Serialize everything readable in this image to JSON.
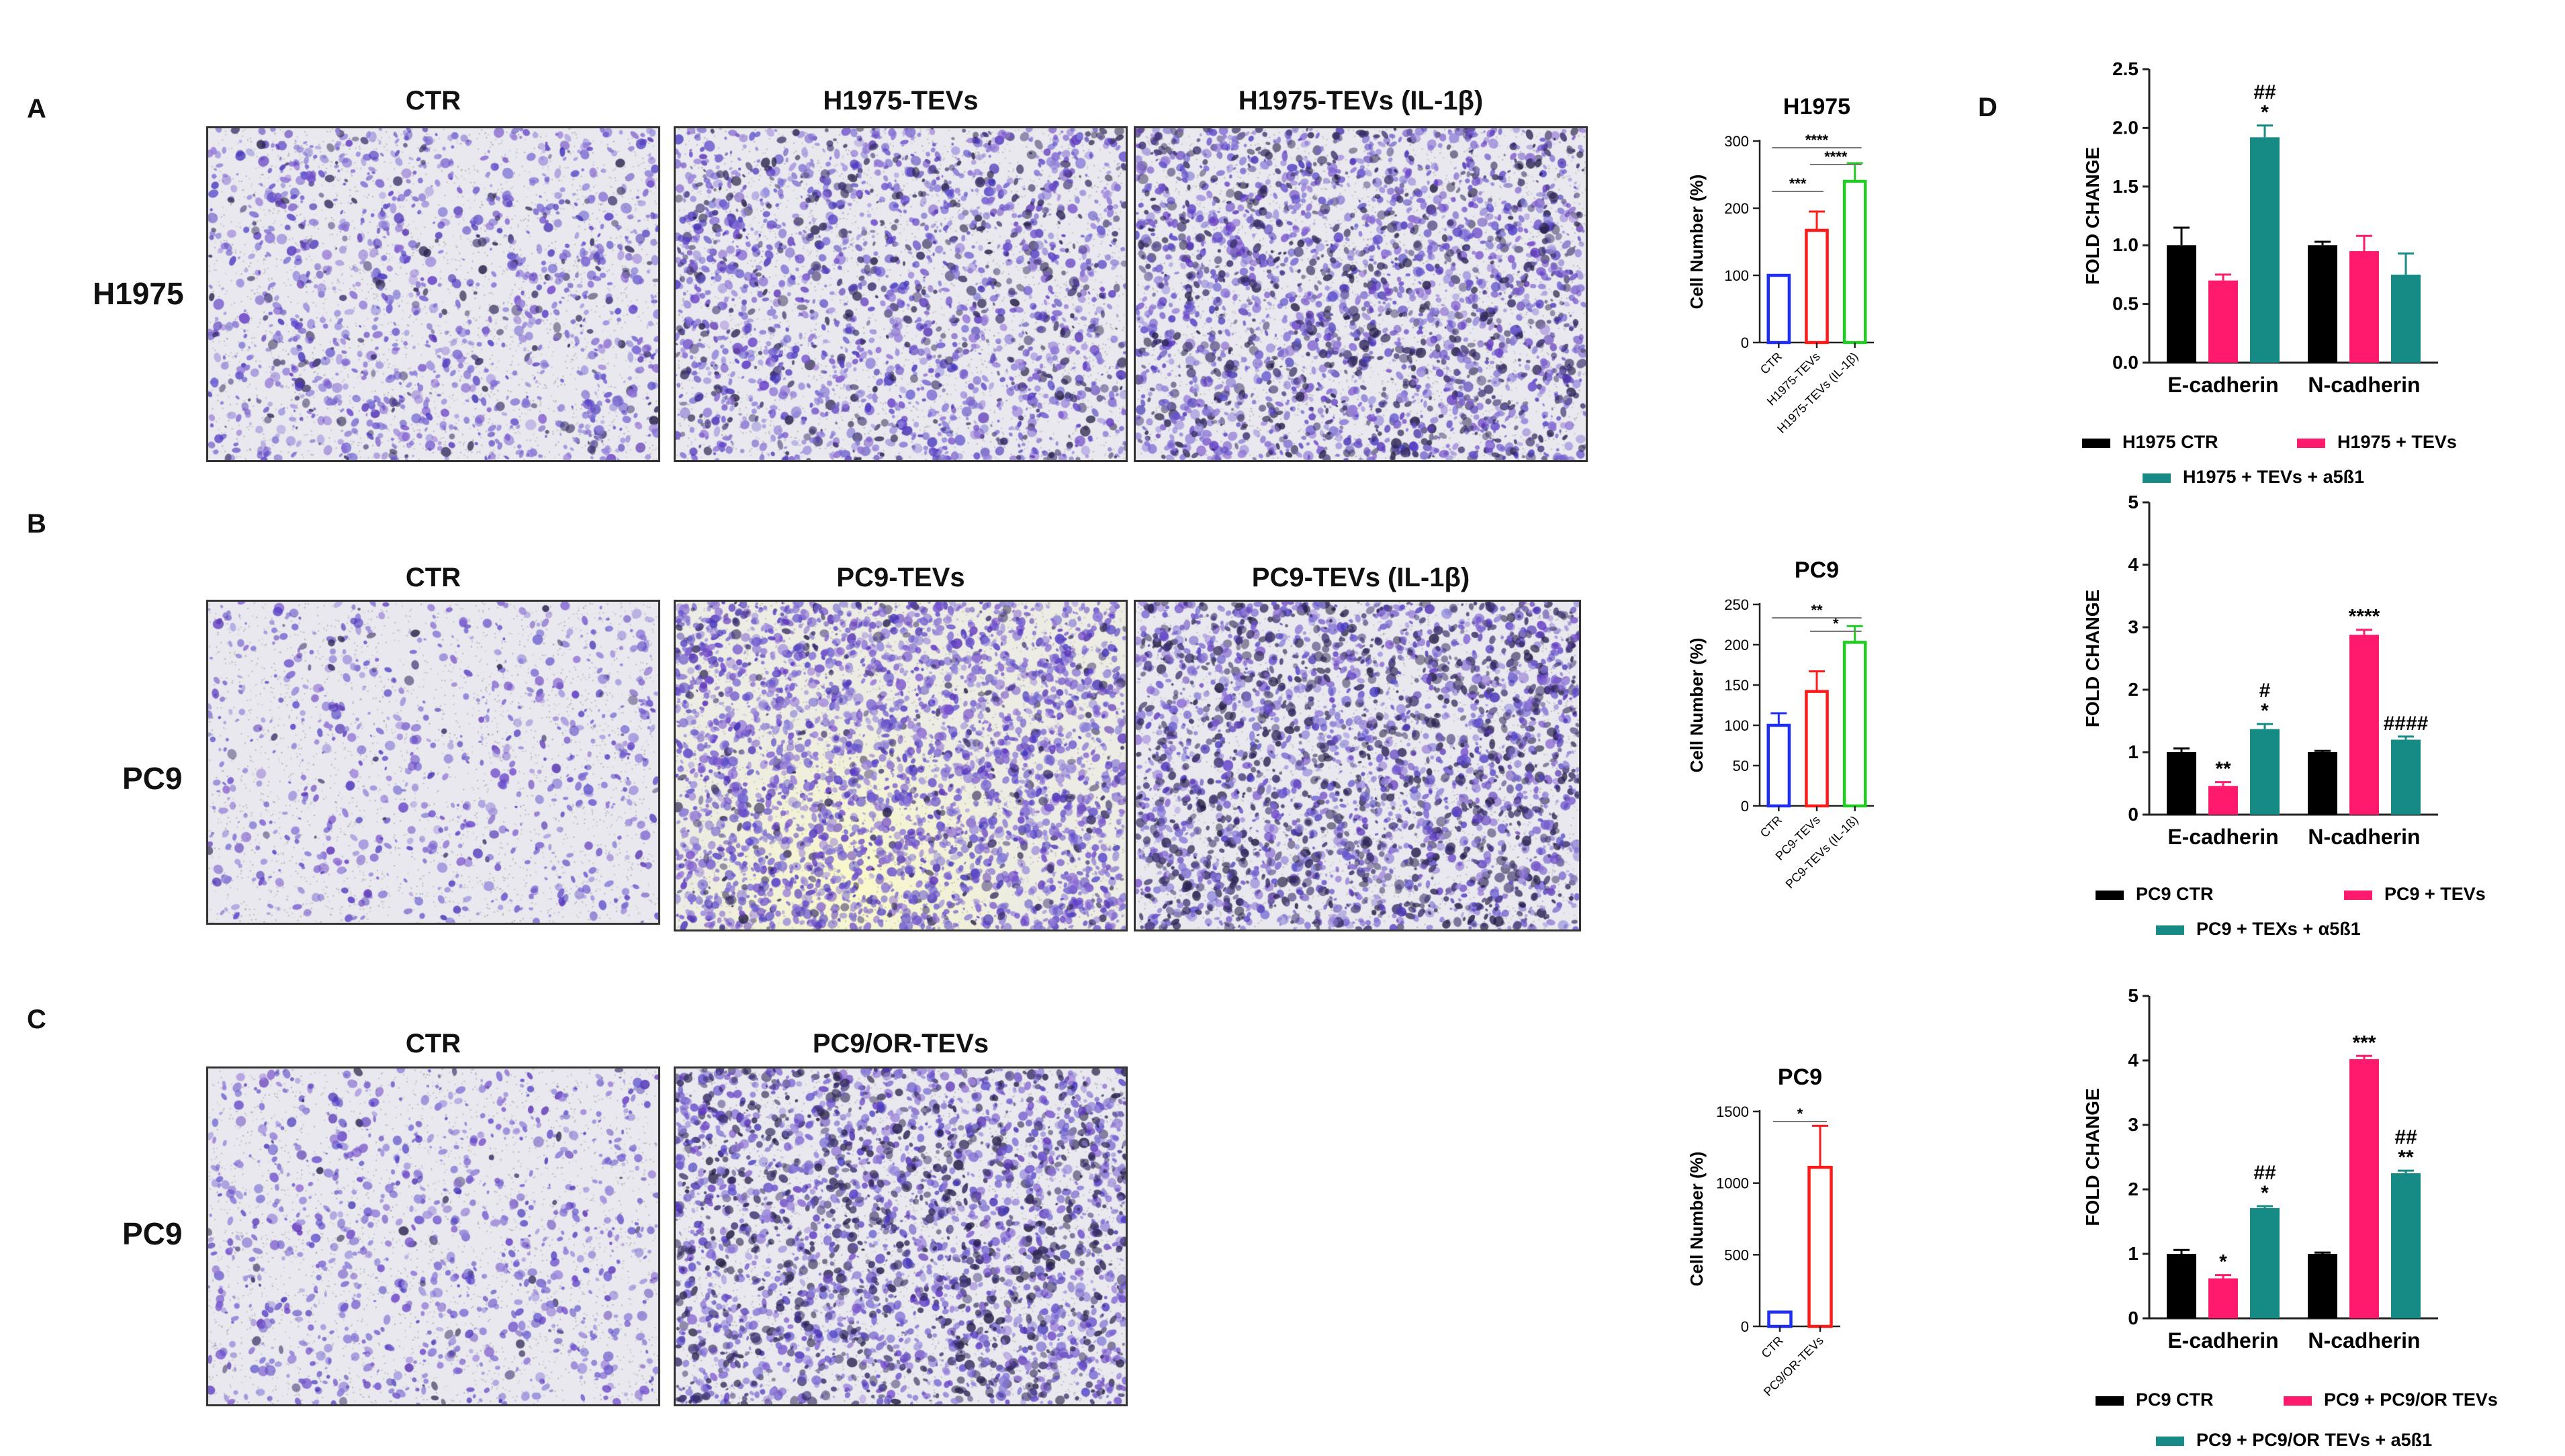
{
  "panel_labels": [
    "A",
    "B",
    "C",
    "D"
  ],
  "rows": [
    {
      "label": "H1975",
      "titles": [
        "CTR",
        "H1975-TEVs",
        "H1975-TEVs (IL-1β)"
      ]
    },
    {
      "label": "PC9",
      "titles": [
        "CTR",
        "PC9-TEVs",
        "PC9-TEVs (IL-1β)"
      ]
    },
    {
      "label": "PC9",
      "titles": [
        "CTR",
        "PC9/OR-TEVs"
      ]
    }
  ],
  "colors": {
    "blue": "#1f2ef5",
    "red": "#ff1a1a",
    "green": "#22cc22",
    "black": "#000000",
    "pink": "#ff1a6e",
    "teal": "#168a85",
    "stain": "#5a40c8"
  },
  "chart_data": [
    {
      "type": "bar",
      "title": "H1975",
      "ylabel": "Cell Number (%)",
      "ylim": [
        0,
        300
      ],
      "yticks": [
        0,
        100,
        200,
        300
      ],
      "categories": [
        "CTR",
        "H1975-TEVs",
        "H1975-TEVs (IL-1β)"
      ],
      "values": [
        100,
        167,
        240
      ],
      "errors": [
        0,
        28,
        27
      ],
      "significance": [
        "***",
        "****",
        "****"
      ]
    },
    {
      "type": "bar",
      "title": "PC9",
      "ylabel": "Cell Number (%)",
      "ylim": [
        0,
        250
      ],
      "yticks": [
        0,
        50,
        100,
        150,
        200,
        250
      ],
      "categories": [
        "CTR",
        "PC9-TEVs",
        "PC9-TEVs (IL-1ß)"
      ],
      "values": [
        100,
        142,
        203
      ],
      "errors": [
        15,
        25,
        20
      ],
      "significance": [
        "**",
        "*"
      ]
    },
    {
      "type": "bar",
      "title": "PC9",
      "ylabel": "Cell Number (%)",
      "ylim": [
        0,
        1500
      ],
      "yticks": [
        0,
        500,
        1000,
        1500
      ],
      "categories": [
        "CTR",
        "PC9/OR-TEVs"
      ],
      "values": [
        100,
        1110
      ],
      "errors": [
        0,
        290
      ],
      "significance": [
        "*"
      ]
    },
    {
      "type": "bar",
      "ylabel": "FOLD CHANGE",
      "ylim": [
        0,
        2.5
      ],
      "yticks": [
        "0.0",
        "0.5",
        "1.0",
        "1.5",
        "2.0",
        "2.5"
      ],
      "categories": [
        "E-cadherin",
        "N-cadherin"
      ],
      "series": [
        {
          "name": "H1975 CTR",
          "values": [
            1.0,
            1.0
          ],
          "errors": [
            0.15,
            0.03
          ],
          "annot": [
            "",
            ""
          ]
        },
        {
          "name": "H1975 + TEVs",
          "values": [
            0.7,
            0.95
          ],
          "errors": [
            0.05,
            0.13
          ],
          "annot": [
            "",
            ""
          ]
        },
        {
          "name": "H1975 + TEVs + a5ß1",
          "values": [
            1.92,
            0.75
          ],
          "errors": [
            0.1,
            0.18
          ],
          "annot": [
            "##\n*",
            ""
          ]
        }
      ]
    },
    {
      "type": "bar",
      "ylabel": "FOLD CHANGE",
      "ylim": [
        0,
        5
      ],
      "yticks": [
        "0",
        "1",
        "2",
        "3",
        "4",
        "5"
      ],
      "categories": [
        "E-cadherin",
        "N-cadherin"
      ],
      "series": [
        {
          "name": "PC9 CTR",
          "values": [
            1.0,
            1.0
          ],
          "errors": [
            0.06,
            0.02
          ],
          "annot": [
            "",
            ""
          ]
        },
        {
          "name": "PC9 + TEVs",
          "values": [
            0.46,
            2.88
          ],
          "errors": [
            0.06,
            0.08
          ],
          "annot": [
            "**",
            "****"
          ]
        },
        {
          "name": "PC9 + TEXs + α5ß1",
          "values": [
            1.37,
            1.2
          ],
          "errors": [
            0.08,
            0.05
          ],
          "annot": [
            "#\n*",
            "####"
          ]
        }
      ]
    },
    {
      "type": "bar",
      "ylabel": "FOLD CHANGE",
      "ylim": [
        0,
        5
      ],
      "yticks": [
        "0",
        "1",
        "2",
        "3",
        "4",
        "5"
      ],
      "categories": [
        "E-cadherin",
        "N-cadherin"
      ],
      "series": [
        {
          "name": "PC9 CTR",
          "values": [
            1.0,
            1.0
          ],
          "errors": [
            0.06,
            0.02
          ],
          "annot": [
            "",
            ""
          ]
        },
        {
          "name": "PC9 + PC9/OR TEVs",
          "values": [
            0.62,
            4.02
          ],
          "errors": [
            0.05,
            0.05
          ],
          "annot": [
            "*",
            "***"
          ]
        },
        {
          "name": "PC9 + PC9/OR TEVs + a5ß1",
          "values": [
            1.71,
            2.25
          ],
          "errors": [
            0.03,
            0.04
          ],
          "annot": [
            "##\n*",
            "##\n**"
          ]
        }
      ]
    }
  ]
}
